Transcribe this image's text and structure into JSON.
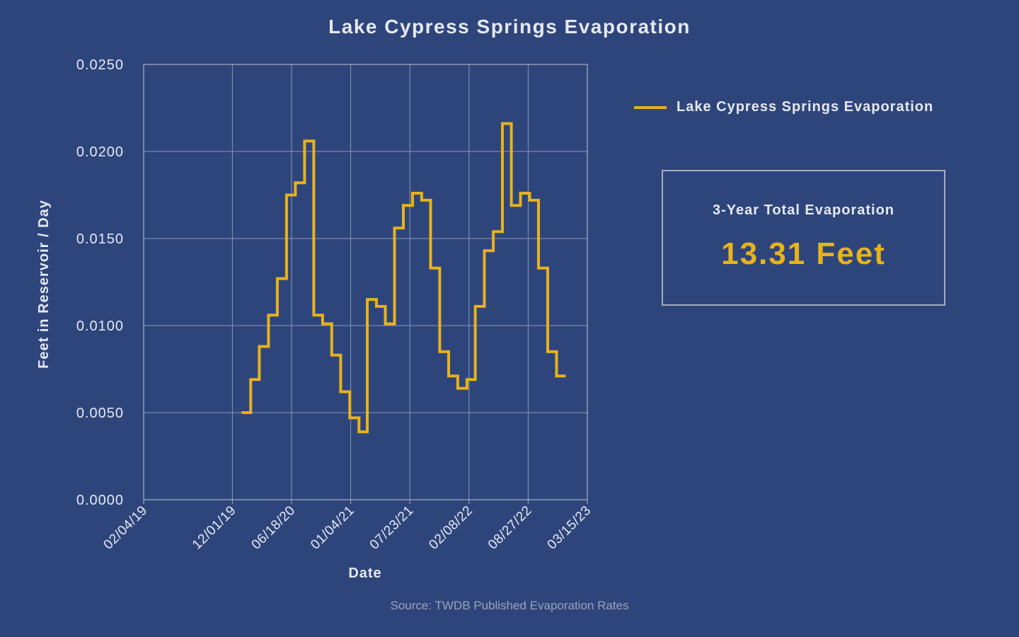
{
  "chart_data": {
    "type": "line",
    "step": true,
    "title": "Lake Cypress Springs Evaporation",
    "xlabel": "Date",
    "ylabel": "Feet in Reservoir / Day",
    "x_tick_labels": [
      "02/04/19",
      "12/01/19",
      "06/18/20",
      "01/04/21",
      "07/23/21",
      "02/08/22",
      "08/27/22",
      "03/15/23"
    ],
    "xlim": [
      "2019-02-04",
      "2023-03-15"
    ],
    "ylim": [
      0,
      0.025
    ],
    "y_tick_labels": [
      "0.0000",
      "0.0050",
      "0.0100",
      "0.0150",
      "0.0200",
      "0.0250"
    ],
    "grid": true,
    "legend_position": "right",
    "series": [
      {
        "name": "Lake Cypress Springs Evaporation",
        "color": "#e8b21a",
        "x": [
          "2020-01-01",
          "2020-02-01",
          "2020-03-01",
          "2020-04-01",
          "2020-05-01",
          "2020-06-01",
          "2020-07-01",
          "2020-08-01",
          "2020-09-01",
          "2020-10-01",
          "2020-11-01",
          "2020-12-01",
          "2021-01-01",
          "2021-02-01",
          "2021-03-01",
          "2021-04-01",
          "2021-05-01",
          "2021-06-01",
          "2021-07-01",
          "2021-08-01",
          "2021-09-01",
          "2021-10-01",
          "2021-11-01",
          "2021-12-01",
          "2022-01-01",
          "2022-02-01",
          "2022-03-01",
          "2022-04-01",
          "2022-05-01",
          "2022-06-01",
          "2022-07-01",
          "2022-08-01",
          "2022-09-01",
          "2022-10-01",
          "2022-11-01",
          "2022-12-01"
        ],
        "y": [
          0.005,
          0.0069,
          0.0088,
          0.0106,
          0.0127,
          0.0175,
          0.0182,
          0.0206,
          0.0106,
          0.0101,
          0.0083,
          0.0062,
          0.0047,
          0.0039,
          0.0115,
          0.0111,
          0.0101,
          0.0156,
          0.0169,
          0.0176,
          0.0172,
          0.0133,
          0.0085,
          0.0071,
          0.0064,
          0.0069,
          0.0111,
          0.0143,
          0.0154,
          0.0216,
          0.0169,
          0.0176,
          0.0172,
          0.0133,
          0.0085,
          0.0071
        ]
      }
    ]
  },
  "summary_box": {
    "label": "3-Year Total Evaporation",
    "value": "13.31 Feet"
  },
  "source_note": "Source: TWDB Published Evaporation Rates",
  "colors": {
    "background": "#2e457c",
    "line": "#e8b21a",
    "grid": "#8c97b3",
    "text": "#e6e9f2"
  }
}
